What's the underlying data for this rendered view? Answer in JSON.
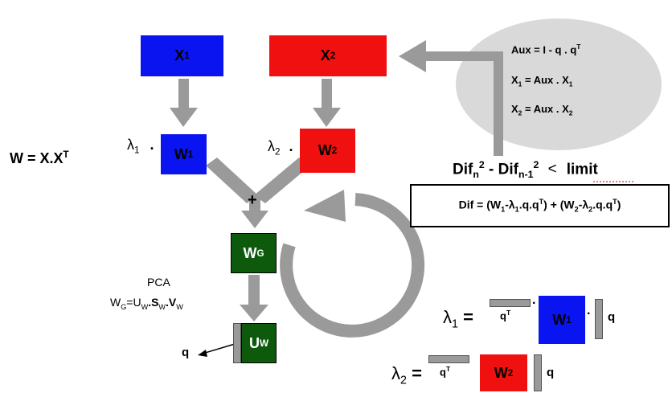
{
  "nodes": {
    "x1": {
      "base": "X",
      "sub": "1"
    },
    "x2": {
      "base": "X",
      "sub": "2"
    },
    "w1": {
      "base": "W",
      "sub": "1"
    },
    "w2": {
      "base": "W",
      "sub": "2"
    },
    "wg": {
      "base": "W",
      "sub": "G"
    },
    "uw": {
      "base": "U",
      "sub": "W"
    }
  },
  "labels": {
    "lambda1": {
      "base": "λ",
      "sub": "1"
    },
    "lambda2": {
      "base": "λ",
      "sub": "2"
    },
    "dot": ".",
    "plus": "+",
    "w_def": {
      "base": "W = X.X",
      "sup": "T"
    },
    "pca": "PCA",
    "q": "q"
  },
  "pca_formula": {
    "w": "W",
    "w_sub": "G",
    "eq": "=U",
    "u_sub": "W",
    "s": ".S",
    "s_sub": "W",
    "v": ".V",
    "v_sub": "W"
  },
  "aux_panel": {
    "line1": {
      "text": "Aux = I - q . q",
      "sup": "T"
    },
    "line2": {
      "a": "X",
      "a_sub": "1",
      "b": " = Aux . X",
      "b_sub": "1"
    },
    "line3": {
      "a": "X",
      "a_sub": "2",
      "b": " = Aux . X",
      "b_sub": "2"
    }
  },
  "convergence": {
    "dif": "Dif",
    "sub_n": "n",
    "sup2": "2",
    "minus": " - Dif",
    "sub_n1": "n-1",
    "lt": "<",
    "limit": "limit"
  },
  "dif_formula": {
    "prefix": "Dif = (W",
    "s1": "1",
    "mid1": "-λ",
    "s2": "1",
    "mid2": ".q.q",
    "t1": "T",
    "mid3": ") + (W",
    "s3": "2",
    "mid4": "-λ",
    "s4": "2",
    "mid5": ".q.q",
    "t2": "T",
    "suffix": ")"
  },
  "lambda_eqs": {
    "l1": {
      "base": "λ",
      "sub": "1",
      "eq": " ="
    },
    "l2": {
      "base": "λ",
      "sub": "2",
      "eq": " ="
    },
    "qt": {
      "base": "q",
      "sup": "T"
    },
    "q": "q",
    "dot": "."
  },
  "colors": {
    "blue": "#0a14f0",
    "red": "#f01010",
    "green": "#0d5a0d",
    "gray": "#999999",
    "ellipse": "#d9d9d9"
  }
}
